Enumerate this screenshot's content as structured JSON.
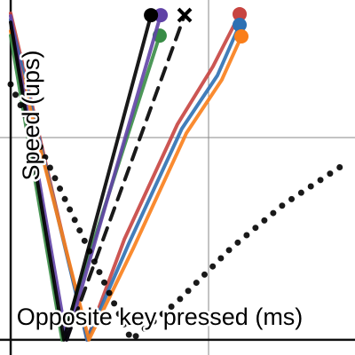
{
  "chart_data": {
    "type": "line",
    "x_label": "Opposite key pressed (ms)",
    "y_label": "Speed (ups)",
    "xlim": [
      -0.054,
      1.74
    ],
    "ylim": [
      -0.075,
      1.68
    ],
    "xticks": [
      0,
      1
    ],
    "yticks": [
      0,
      1
    ],
    "grid": true,
    "series": [
      {
        "color": "#c74440",
        "style": "solid",
        "marker": "dot",
        "x": [
          0,
          0.386,
          0.574,
          0.843,
          1.022,
          1.157
        ],
        "values": [
          1.614,
          0,
          0.496,
          1.066,
          1.351,
          1.61
        ]
      },
      {
        "color": "#2d70b3",
        "style": "solid",
        "marker": "dot",
        "x": [
          0,
          0.386,
          0.596,
          0.865,
          1.045,
          1.157
        ],
        "values": [
          1.583,
          0,
          0.474,
          1.044,
          1.307,
          1.557
        ]
      },
      {
        "color": "#fa7e19",
        "style": "solid",
        "marker": "dot",
        "x": [
          0,
          0.395,
          0.619,
          0.888,
          1.067,
          1.166
        ],
        "values": [
          1.526,
          0,
          0.452,
          1.022,
          1.285,
          1.5
        ]
      },
      {
        "color": "#388c46",
        "style": "solid",
        "marker": "dot",
        "x": [
          0,
          0.26,
          0.753
        ],
        "values": [
          1.504,
          0,
          1.504
        ]
      },
      {
        "color": "#6042a6",
        "style": "solid",
        "marker": "dot",
        "x": [
          0,
          0.283,
          0.758
        ],
        "values": [
          1.601,
          0,
          1.605
        ]
      },
      {
        "color": "#000000",
        "style": "solid",
        "marker": "dot",
        "x": [
          0,
          0.269,
          0.709
        ],
        "values": [
          1.57,
          0,
          1.605
        ]
      },
      {
        "color": "#000000",
        "style": "dashed",
        "marker": "cross",
        "x": [
          0.283,
          0.879
        ],
        "values": [
          0,
          1.605
        ]
      },
      {
        "color": "#000000",
        "style": "dotted",
        "marker": "none",
        "x": [
          0,
          0.61,
          0.843,
          1.112,
          1.381,
          1.673
        ],
        "values": [
          1.263,
          0,
          0.189,
          0.452,
          0.671,
          0.86
        ]
      }
    ]
  }
}
